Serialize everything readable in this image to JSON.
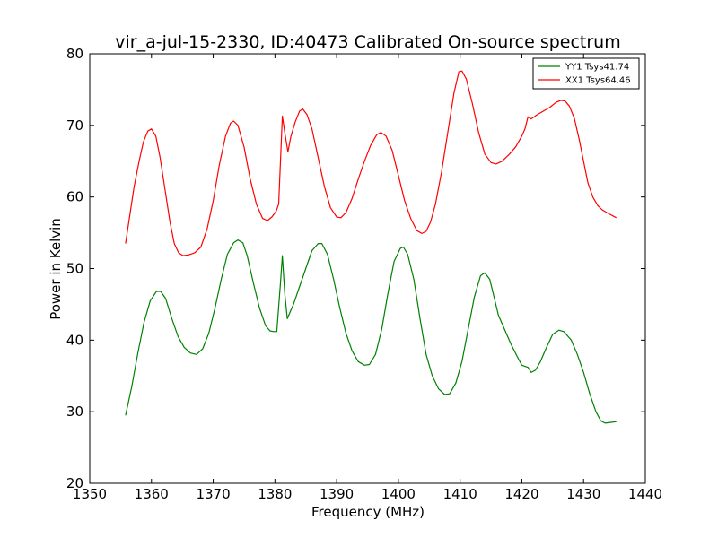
{
  "chart_data": {
    "type": "line",
    "title": "vir_a-jul-15-2330, ID:40473 Calibrated On-source spectrum",
    "xlabel": "Frequency (MHz)",
    "ylabel": "Power in Kelvin",
    "xlim": [
      1350,
      1440
    ],
    "ylim": [
      20,
      80
    ],
    "xticks": [
      "1350",
      "1360",
      "1370",
      "1380",
      "1390",
      "1400",
      "1410",
      "1420",
      "1430",
      "1440"
    ],
    "yticks": [
      "20",
      "30",
      "40",
      "50",
      "60",
      "70",
      "80"
    ],
    "grid": false,
    "legend_position": "top-right",
    "series": [
      {
        "name": "YY1 Tsys41.74",
        "color": "#008000",
        "points": [
          [
            1355.8,
            29.5
          ],
          [
            1356.8,
            33.5
          ],
          [
            1357.8,
            38.2
          ],
          [
            1358.8,
            42.5
          ],
          [
            1359.8,
            45.5
          ],
          [
            1360.8,
            46.8
          ],
          [
            1361.5,
            46.8
          ],
          [
            1362.3,
            45.8
          ],
          [
            1363.3,
            43.0
          ],
          [
            1364.3,
            40.5
          ],
          [
            1365.3,
            39.0
          ],
          [
            1366.3,
            38.2
          ],
          [
            1367.3,
            38.0
          ],
          [
            1368.3,
            38.8
          ],
          [
            1369.3,
            41.0
          ],
          [
            1370.3,
            44.5
          ],
          [
            1371.3,
            48.5
          ],
          [
            1372.3,
            52.0
          ],
          [
            1373.3,
            53.6
          ],
          [
            1374.0,
            54.0
          ],
          [
            1374.8,
            53.6
          ],
          [
            1375.5,
            51.8
          ],
          [
            1376.5,
            48.0
          ],
          [
            1377.5,
            44.5
          ],
          [
            1378.5,
            42.0
          ],
          [
            1379.2,
            41.3
          ],
          [
            1379.8,
            41.2
          ],
          [
            1380.3,
            41.2
          ],
          [
            1380.9,
            48.0
          ],
          [
            1381.2,
            51.8
          ],
          [
            1381.6,
            46.5
          ],
          [
            1382.0,
            43.0
          ],
          [
            1382.5,
            44.0
          ],
          [
            1383.0,
            45.0
          ],
          [
            1384.0,
            47.5
          ],
          [
            1385.0,
            50.0
          ],
          [
            1386.0,
            52.5
          ],
          [
            1387.0,
            53.5
          ],
          [
            1387.6,
            53.5
          ],
          [
            1388.5,
            52.0
          ],
          [
            1389.5,
            48.5
          ],
          [
            1390.5,
            44.5
          ],
          [
            1391.5,
            41.0
          ],
          [
            1392.5,
            38.5
          ],
          [
            1393.5,
            37.0
          ],
          [
            1394.5,
            36.5
          ],
          [
            1395.3,
            36.6
          ],
          [
            1396.3,
            38.0
          ],
          [
            1397.3,
            41.5
          ],
          [
            1398.3,
            46.5
          ],
          [
            1399.3,
            51.0
          ],
          [
            1400.3,
            52.8
          ],
          [
            1400.8,
            53.0
          ],
          [
            1401.5,
            52.0
          ],
          [
            1402.5,
            48.5
          ],
          [
            1403.5,
            43.0
          ],
          [
            1404.5,
            38.0
          ],
          [
            1405.5,
            35.0
          ],
          [
            1406.5,
            33.2
          ],
          [
            1407.5,
            32.4
          ],
          [
            1408.3,
            32.5
          ],
          [
            1409.3,
            34.0
          ],
          [
            1410.3,
            37.0
          ],
          [
            1411.3,
            41.5
          ],
          [
            1412.3,
            46.0
          ],
          [
            1413.3,
            49.0
          ],
          [
            1414.0,
            49.4
          ],
          [
            1414.8,
            48.5
          ],
          [
            1415.5,
            46.0
          ],
          [
            1416.2,
            43.5
          ],
          [
            1417.2,
            41.5
          ],
          [
            1418.2,
            39.5
          ],
          [
            1419.2,
            37.8
          ],
          [
            1420.0,
            36.5
          ],
          [
            1421.0,
            36.2
          ],
          [
            1421.5,
            35.5
          ],
          [
            1422.2,
            35.8
          ],
          [
            1423.0,
            37.0
          ],
          [
            1424.0,
            39.0
          ],
          [
            1425.0,
            40.8
          ],
          [
            1426.0,
            41.4
          ],
          [
            1426.8,
            41.2
          ],
          [
            1428.0,
            40.0
          ],
          [
            1429.0,
            38.0
          ],
          [
            1430.0,
            35.5
          ],
          [
            1431.0,
            32.5
          ],
          [
            1432.0,
            30.0
          ],
          [
            1432.8,
            28.7
          ],
          [
            1433.5,
            28.4
          ],
          [
            1434.3,
            28.5
          ],
          [
            1435.3,
            28.6
          ]
        ]
      },
      {
        "name": "XX1 Tsys64.46",
        "color": "#ff0000",
        "points": [
          [
            1355.8,
            53.5
          ],
          [
            1356.5,
            57.5
          ],
          [
            1357.2,
            61.5
          ],
          [
            1358.0,
            65.0
          ],
          [
            1358.7,
            67.7
          ],
          [
            1359.4,
            69.2
          ],
          [
            1360.0,
            69.5
          ],
          [
            1360.7,
            68.5
          ],
          [
            1361.4,
            65.5
          ],
          [
            1362.2,
            61.0
          ],
          [
            1363.0,
            56.5
          ],
          [
            1363.7,
            53.5
          ],
          [
            1364.4,
            52.2
          ],
          [
            1365.1,
            51.8
          ],
          [
            1366.0,
            51.9
          ],
          [
            1367.0,
            52.2
          ],
          [
            1368.0,
            53.0
          ],
          [
            1369.0,
            55.5
          ],
          [
            1370.0,
            59.5
          ],
          [
            1371.0,
            64.5
          ],
          [
            1372.0,
            68.5
          ],
          [
            1372.8,
            70.3
          ],
          [
            1373.3,
            70.6
          ],
          [
            1374.0,
            70.0
          ],
          [
            1375.0,
            67.0
          ],
          [
            1376.0,
            62.5
          ],
          [
            1377.0,
            59.0
          ],
          [
            1378.0,
            57.0
          ],
          [
            1378.8,
            56.7
          ],
          [
            1379.5,
            57.2
          ],
          [
            1380.2,
            58.0
          ],
          [
            1380.6,
            59.0
          ],
          [
            1381.2,
            71.3
          ],
          [
            1381.6,
            69.0
          ],
          [
            1382.1,
            66.3
          ],
          [
            1382.6,
            68.5
          ],
          [
            1383.3,
            70.5
          ],
          [
            1384.0,
            72.0
          ],
          [
            1384.5,
            72.3
          ],
          [
            1385.2,
            71.5
          ],
          [
            1386.0,
            69.5
          ],
          [
            1387.0,
            65.5
          ],
          [
            1388.0,
            61.5
          ],
          [
            1389.0,
            58.5
          ],
          [
            1390.0,
            57.2
          ],
          [
            1390.7,
            57.1
          ],
          [
            1391.5,
            57.8
          ],
          [
            1392.5,
            59.8
          ],
          [
            1393.5,
            62.5
          ],
          [
            1394.5,
            65.0
          ],
          [
            1395.5,
            67.2
          ],
          [
            1396.5,
            68.7
          ],
          [
            1397.2,
            69.0
          ],
          [
            1398.0,
            68.5
          ],
          [
            1399.0,
            66.5
          ],
          [
            1400.0,
            63.0
          ],
          [
            1401.0,
            59.5
          ],
          [
            1402.0,
            57.0
          ],
          [
            1403.0,
            55.3
          ],
          [
            1403.8,
            54.9
          ],
          [
            1404.5,
            55.2
          ],
          [
            1405.2,
            56.5
          ],
          [
            1406.0,
            59.0
          ],
          [
            1407.0,
            63.5
          ],
          [
            1408.0,
            69.0
          ],
          [
            1409.0,
            74.5
          ],
          [
            1409.8,
            77.5
          ],
          [
            1410.3,
            77.6
          ],
          [
            1411.0,
            76.5
          ],
          [
            1412.0,
            73.0
          ],
          [
            1413.0,
            69.0
          ],
          [
            1414.0,
            66.0
          ],
          [
            1415.0,
            64.8
          ],
          [
            1415.8,
            64.6
          ],
          [
            1416.8,
            65.0
          ],
          [
            1418.0,
            66.0
          ],
          [
            1419.0,
            67.0
          ],
          [
            1420.0,
            68.5
          ],
          [
            1420.5,
            69.5
          ],
          [
            1421.0,
            71.2
          ],
          [
            1421.5,
            70.9
          ],
          [
            1422.5,
            71.5
          ],
          [
            1423.5,
            72.0
          ],
          [
            1424.5,
            72.5
          ],
          [
            1425.5,
            73.2
          ],
          [
            1426.3,
            73.5
          ],
          [
            1427.0,
            73.4
          ],
          [
            1427.7,
            72.7
          ],
          [
            1428.5,
            71.0
          ],
          [
            1429.3,
            68.0
          ],
          [
            1430.0,
            65.0
          ],
          [
            1430.7,
            62.0
          ],
          [
            1431.5,
            60.0
          ],
          [
            1432.3,
            58.8
          ],
          [
            1433.0,
            58.2
          ],
          [
            1434.0,
            57.7
          ],
          [
            1435.3,
            57.1
          ]
        ]
      }
    ]
  }
}
